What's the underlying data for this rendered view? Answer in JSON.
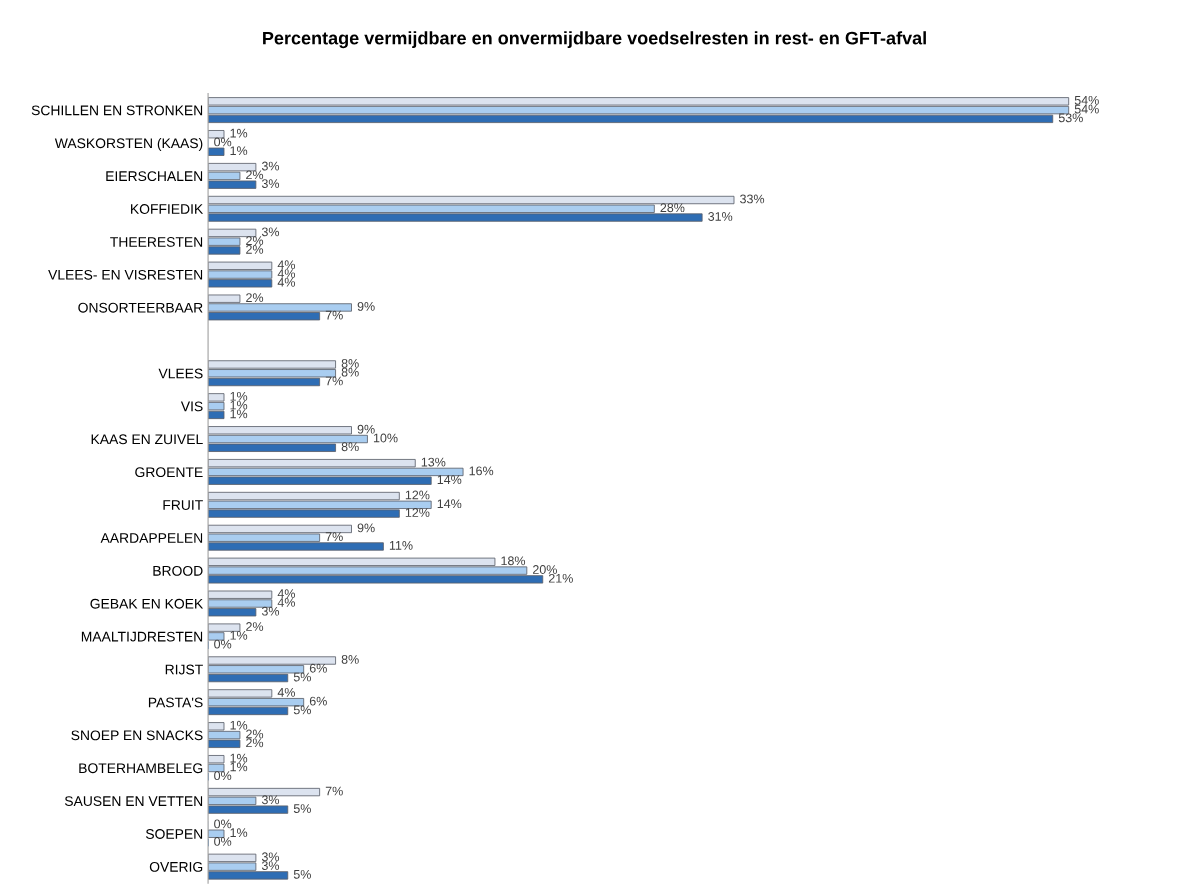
{
  "chart_data": {
    "type": "bar",
    "orientation": "horizontal",
    "title": "Percentage vermijdbare en onvermijdbare voedselresten in rest- en GFT-afval",
    "categories": [
      "SCHILLEN EN STRONKEN",
      "WASKORSTEN (KAAS)",
      "EIERSCHALEN",
      "KOFFIEDIK",
      "THEERESTEN",
      "VLEES- EN VISRESTEN",
      "ONSORTEERBAAR",
      null,
      "VLEES",
      "VIS",
      "KAAS EN ZUIVEL",
      "GROENTE",
      "FRUIT",
      "AARDAPPELEN",
      "BROOD",
      "GEBAK EN KOEK",
      "MAALTIJDRESTEN",
      "RIJST",
      "PASTA'S",
      "SNOEP EN SNACKS",
      "BOTERHAMBELEG",
      "SAUSEN EN VETTEN",
      "SOEPEN",
      "OVERIG"
    ],
    "series": [
      {
        "color": "#dce3ef",
        "values": [
          54,
          1,
          3,
          33,
          3,
          4,
          2,
          null,
          8,
          1,
          9,
          13,
          12,
          9,
          18,
          4,
          2,
          8,
          4,
          1,
          1,
          7,
          0,
          3
        ],
        "value_labels": [
          "54%",
          "1%",
          "3%",
          "33%",
          "3%",
          "4%",
          "2%",
          null,
          "8%",
          "1%",
          "9%",
          "13%",
          "12%",
          "9%",
          "18%",
          "4%",
          "2%",
          "8%",
          "4%",
          "1%",
          "1%",
          "7%",
          "0%",
          "3%"
        ]
      },
      {
        "color": "#a9cdf0",
        "values": [
          54,
          0,
          2,
          28,
          2,
          4,
          9,
          null,
          8,
          1,
          10,
          16,
          14,
          7,
          20,
          4,
          1,
          6,
          6,
          2,
          1,
          3,
          1,
          3
        ],
        "value_labels": [
          "54%",
          "0%",
          "2%",
          "28%",
          "2%",
          "4%",
          "9%",
          null,
          "8%",
          "1%",
          "10%",
          "16%",
          "14%",
          "7%",
          "20%",
          "4%",
          "1%",
          "6%",
          "6%",
          "2%",
          "1%",
          "3%",
          "1%",
          "3%"
        ]
      },
      {
        "color": "#2e6db4",
        "values": [
          53,
          1,
          3,
          31,
          2,
          4,
          7,
          null,
          7,
          1,
          8,
          14,
          12,
          11,
          21,
          3,
          0,
          5,
          5,
          2,
          0,
          5,
          0,
          5
        ],
        "value_labels": [
          "53%",
          "1%",
          "3%",
          "31%",
          "2%",
          "4%",
          "7%",
          null,
          "7%",
          "1%",
          "8%",
          "14%",
          "12%",
          "11%",
          "21%",
          "3%",
          "0%",
          "5%",
          "5%",
          "2%",
          "0%",
          "5%",
          "0%",
          "5%"
        ]
      }
    ],
    "grid": false,
    "legend": false
  }
}
